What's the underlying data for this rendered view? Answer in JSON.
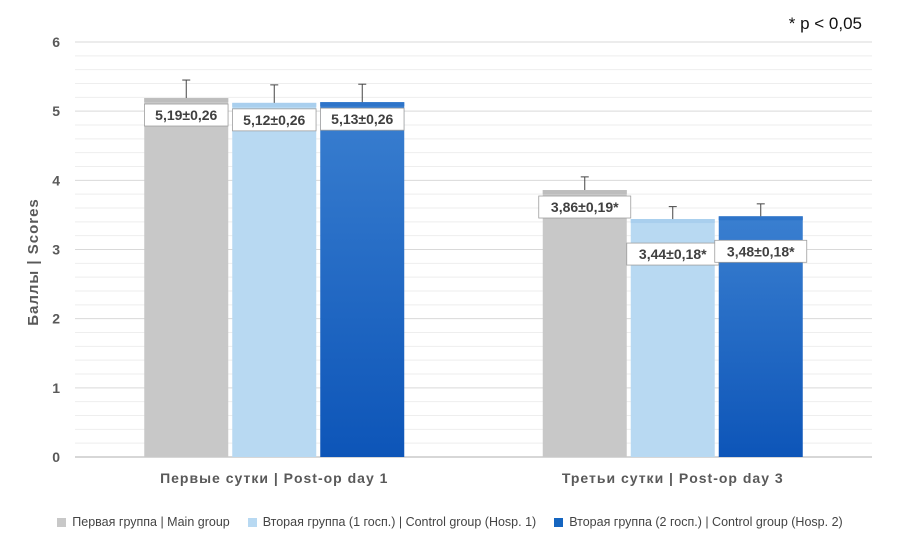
{
  "note": "* p < 0,05",
  "chart_data": {
    "type": "bar",
    "ylabel": "Баллы | Scores",
    "xlabel": "",
    "ylim": [
      0,
      6
    ],
    "yticks": [
      0,
      1,
      2,
      3,
      4,
      5,
      6
    ],
    "grid": true,
    "legend_position": "bottom",
    "categories": [
      "Первые сутки | Post-op day 1",
      "Третьи сутки | Post-op day 3"
    ],
    "series": [
      {
        "name": "Первая группа | Main group",
        "color": "#c8c8c8",
        "values": [
          5.19,
          3.86
        ],
        "errors": [
          0.26,
          0.19
        ],
        "labels": [
          "5,19±0,26",
          "3,86±0,19*"
        ]
      },
      {
        "name": "Вторая группа  (1 госп.) | Control group (Hosp. 1)",
        "color": "#b8d9f2",
        "values": [
          5.12,
          3.44
        ],
        "errors": [
          0.26,
          0.18
        ],
        "labels": [
          "5,12±0,26",
          "3,44±0,18*"
        ]
      },
      {
        "name": "Вторая группа (2 госп.) | Control group (Hosp. 2)",
        "color": "#1565c0",
        "values": [
          5.13,
          3.48
        ],
        "errors": [
          0.26,
          0.18
        ],
        "labels": [
          "5,13±0,26",
          "3,48±0,18*"
        ]
      }
    ]
  }
}
